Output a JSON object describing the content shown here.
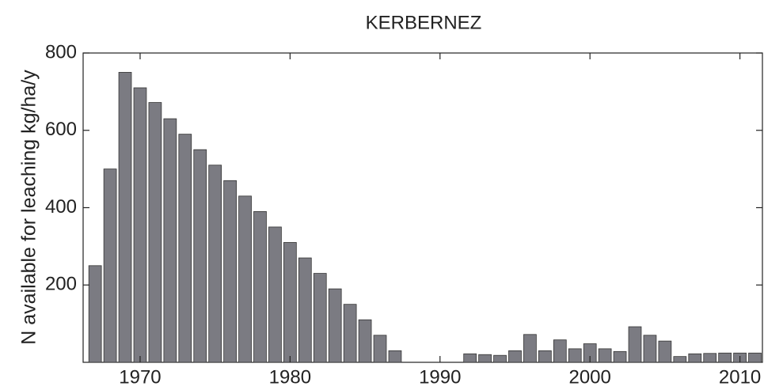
{
  "chart_data": {
    "type": "bar",
    "title": "KERBERNEZ",
    "y_label": "N available for leaching kg/ha/y",
    "x": [
      1967,
      1968,
      1969,
      1970,
      1971,
      1972,
      1973,
      1974,
      1975,
      1976,
      1977,
      1978,
      1979,
      1980,
      1981,
      1982,
      1983,
      1984,
      1985,
      1986,
      1987,
      1988,
      1989,
      1990,
      1991,
      1992,
      1993,
      1994,
      1995,
      1996,
      1997,
      1998,
      1999,
      2000,
      2001,
      2002,
      2003,
      2004,
      2005,
      2006,
      2007,
      2008,
      2009,
      2010,
      2011
    ],
    "values": [
      250,
      500,
      750,
      710,
      672,
      630,
      590,
      550,
      510,
      470,
      430,
      390,
      350,
      310,
      270,
      230,
      190,
      150,
      110,
      70,
      30,
      0,
      0,
      0,
      0,
      22,
      20,
      18,
      30,
      72,
      30,
      58,
      35,
      48,
      35,
      28,
      92,
      70,
      55,
      15,
      22,
      23,
      24,
      24,
      24
    ],
    "color": "#7b7b82",
    "xlim": [
      1966.2,
      2011.5
    ],
    "xticks": [
      1970,
      1980,
      1990,
      2000,
      2010
    ],
    "ylim": [
      0,
      800
    ],
    "yticks": [
      200,
      400,
      600,
      800
    ],
    "grid": false
  }
}
